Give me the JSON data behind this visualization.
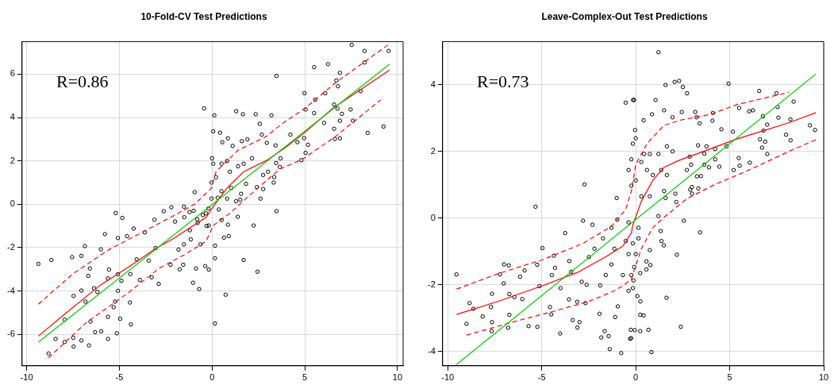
{
  "chart_data": [
    {
      "type": "scatter",
      "title": "10-Fold-CV Test Predictions",
      "annotations": [
        "R=0.86"
      ],
      "xlim": [
        -10.25,
        10.3
      ],
      "ylim": [
        -7.45,
        7.5
      ],
      "xticks": [
        -10,
        -5,
        0,
        5,
        10
      ],
      "yticks": [
        -6,
        -4,
        -2,
        0,
        2,
        4,
        6
      ],
      "grid": true,
      "series": [
        {
          "marker": "circle",
          "color": "#000000",
          "x": [
            -9.37,
            -8.67,
            -7.55,
            -7.05,
            -6.86,
            -6.0,
            -5.78,
            -5.2,
            -4.84,
            -5.08,
            -4.23,
            -3.63,
            -3.11,
            -2.61,
            -2.2,
            -1.52,
            -0.94,
            -0.43,
            0.12,
            0.06,
            0,
            -6.59,
            -6.68,
            -7.47,
            -7.05,
            -6.83,
            -6.37,
            -6.19,
            -5.56,
            -5.62,
            -5.08,
            -5.08,
            -5.23,
            -5.31,
            -5.62,
            -4.96,
            -5.14,
            -5.61,
            -5.98,
            -6.31,
            -6.56,
            -6.64,
            -7.05,
            -7.47,
            -7.49,
            -7.95,
            -8.44,
            -8.82,
            -7.95,
            -4.43,
            -4.38,
            -4.89,
            -4.41,
            -3.9,
            -3.26,
            -2.88,
            -4.59,
            -4.07,
            -3.42,
            -3.05,
            -2.24,
            -1.75,
            -1.56,
            -1.03,
            -0.7,
            -0.87,
            -0.37,
            -0.18,
            0.15,
            0.15,
            -1.81,
            -1.52,
            -1.15,
            -0.63,
            -0.18,
            -0.78,
            -1.22,
            -0.33,
            -0.03,
            -0.03,
            0.43,
            1.3,
            1.66,
            2.35,
            3.2,
            3.47,
            2.57,
            0.85,
            0.55,
            1.11,
            1.6,
            1.9,
            2.68,
            2.95,
            3.42,
            4.22,
            4.6,
            4.98,
            5.04,
            5.5,
            6.25,
            5.56,
            5.5,
            6.1,
            6.7,
            6.79,
            6.89,
            6.58,
            6.76,
            7.0,
            6.89,
            6.58,
            6.62,
            6.89,
            6.04,
            7.47,
            7.59,
            7.53,
            8.22,
            8.22,
            8.01,
            8.39,
            9.24,
            9.52,
            4.96,
            5.17,
            5.04,
            4.81,
            3.69,
            3.65,
            3.45,
            2.75,
            3.02,
            3.35,
            3.32,
            2.75,
            2.41,
            2.61,
            1.83,
            1.56,
            1.29,
            1.52,
            1.38,
            2.24,
            3.47,
            1.7,
            2.45,
            0.73,
            0.16,
            0.64,
            0.9,
            0.85,
            0.51,
            0.36,
            0.81,
            1.03,
            0.96,
            1.4,
            1.7,
            2.15,
            0.81,
            0.51,
            0.21,
            0.06,
            -0.5,
            -0.8,
            -0.3,
            -1.0,
            -0.2,
            0.3,
            0.5,
            -1.5,
            -2.0,
            -1.2
          ],
          "values": [
            -2.75,
            -2.57,
            -2.44,
            -2.38,
            -1.93,
            -2.08,
            -1.38,
            -0.41,
            -0.63,
            -1.56,
            -1.12,
            -1.3,
            -0.71,
            -0.32,
            -0.14,
            -0.11,
            0.56,
            4.42,
            4.1,
            3.36,
            2.12,
            -2.96,
            -3.3,
            -4.23,
            -3.98,
            -4.49,
            -3.87,
            -4.04,
            -3.01,
            -3.42,
            -3.23,
            -3.99,
            -4.49,
            -4.75,
            -5.19,
            -5.28,
            -5.95,
            -6.21,
            -5.86,
            -5.9,
            -5.41,
            -6.51,
            -6.28,
            -6.56,
            -6.16,
            -6.35,
            -6.21,
            -6.88,
            -5.32,
            -4.53,
            -5.54,
            -3.53,
            -3.22,
            -3.49,
            -3.37,
            -3.67,
            -1.47,
            -2.54,
            -2.6,
            -2.02,
            -2.79,
            -3.0,
            -2.79,
            -3.62,
            -3.91,
            -2.96,
            -2.85,
            -3.01,
            -2.49,
            -5.5,
            -2.09,
            -1.85,
            -1.62,
            -1.85,
            -0.98,
            -0.86,
            -0.36,
            -0.42,
            1.0,
            0.26,
            3.3,
            4.29,
            4.15,
            4.15,
            4.1,
            5.92,
            3.71,
            3.04,
            2.86,
            2.69,
            2.91,
            2.99,
            3.21,
            2.83,
            2.71,
            3.21,
            2.86,
            5.12,
            4.37,
            6.32,
            6.46,
            4.82,
            4.2,
            5.12,
            5.71,
            5.44,
            6.06,
            4.6,
            4.41,
            4.17,
            3.85,
            3.48,
            3.01,
            3.04,
            3.75,
            4.37,
            3.85,
            7.35,
            7.07,
            6.54,
            5.22,
            3.29,
            3.58,
            7.07,
            3.05,
            2.74,
            2.37,
            2.03,
            2.12,
            1.72,
            1.9,
            1.35,
            1.5,
            1.25,
            1.0,
            0.7,
            0.79,
            0.26,
            0.94,
            0.48,
            0.14,
            0.21,
            -0.58,
            -0.98,
            -0.32,
            -2.57,
            -3.11,
            -4.17,
            -1.91,
            -1.54,
            -1.47,
            -0.94,
            -0.73,
            -0.24,
            0.26,
            0.75,
            1.5,
            1.75,
            1.87,
            2.12,
            2.0,
            1.87,
            1.25,
            1.87,
            -0.5,
            -0.7,
            -1.0,
            -0.3,
            -0.2,
            0.3,
            0.6,
            -0.6,
            -0.8,
            -1.2
          ]
        },
        {
          "type": "line",
          "color": "#00cc00",
          "line_style": "solid",
          "x": [
            -9.37,
            9.57
          ],
          "values": [
            -6.36,
            6.46
          ]
        },
        {
          "type": "line",
          "color": "#ff0000",
          "line_style": "solid",
          "x": [
            -9.37,
            -7.95,
            -6.0,
            -4.51,
            -3.02,
            -2.12,
            -1.22,
            -0.33,
            0.06,
            0.81,
            1.7,
            2.9,
            3.95,
            4.99,
            6.49,
            9.57
          ],
          "values": [
            -6.08,
            -5.07,
            -3.71,
            -2.9,
            -2.03,
            -1.6,
            -1.1,
            -0.61,
            -0.11,
            0.75,
            1.5,
            2.0,
            2.61,
            3.3,
            4.41,
            6.19
          ]
        },
        {
          "type": "line",
          "color": "#ff0000",
          "line_style": "dashed",
          "x": [
            -9.37,
            -7.51,
            -5.56,
            -3.47,
            -2.12,
            -0.93,
            -0.03,
            0.21,
            1.4,
            2.9,
            3.8,
            4.99,
            6.64,
            9.57
          ],
          "values": [
            -4.61,
            -3.21,
            -2.09,
            -1.16,
            -0.55,
            0.01,
            0.75,
            1.5,
            2.49,
            3.11,
            3.73,
            4.41,
            5.59,
            7.4
          ]
        },
        {
          "type": "line",
          "color": "#ff0000",
          "line_style": "dashed",
          "x": [
            -8.82,
            -6.76,
            -4.51,
            -2.87,
            -1.52,
            -0.33,
            0.06,
            0.96,
            2.15,
            3.65,
            4.84,
            6.64,
            9.1
          ],
          "values": [
            -7.08,
            -5.44,
            -4.08,
            -2.96,
            -2.34,
            -1.72,
            -0.98,
            -0.42,
            0.51,
            1.62,
            2.06,
            3.11,
            4.82
          ]
        }
      ]
    },
    {
      "type": "scatter",
      "title": "Leave-Complex-Out Test Predictions",
      "annotations": [
        "R=0.73"
      ],
      "xlim": [
        -10.27,
        10.0
      ],
      "ylim": [
        -4.43,
        5.29
      ],
      "xticks": [
        -10,
        -5,
        0,
        5,
        10
      ],
      "yticks": [
        -4,
        -2,
        0,
        2,
        4
      ],
      "grid": true,
      "series": [
        {
          "marker": "circle",
          "color": "#000000",
          "x": [
            -9.53,
            -8.84,
            -9.0,
            -8.63,
            -8.14,
            -7.66,
            -7.64,
            -7.7,
            -7.64,
            -7.22,
            -7.0,
            -6.75,
            -7.02,
            -6.72,
            -6.78,
            -6.72,
            -6.45,
            -6.15,
            -6.03,
            -5.91,
            -5.7,
            -5.23,
            -5.33,
            -5.24,
            -5.12,
            -4.96,
            -4.35,
            -4.29,
            -4.56,
            -4.49,
            -4.02,
            -3.75,
            -3.53,
            -3.43,
            -3.55,
            -3.35,
            -3.1,
            -2.99,
            -3.11,
            -2.8,
            -2.72,
            -2.3,
            -2.49,
            -2.61,
            -2.67,
            -1.92,
            -1.65,
            -1.83,
            -1.44,
            -1.38,
            -0.77,
            -1.09,
            -0.95,
            -1.01,
            -0.53,
            -0.14,
            -0.3,
            -0.26,
            -1.89,
            -1.59,
            -1.29,
            -1.13,
            -1.29,
            -1.74,
            -2.19,
            -0.98,
            -0.53,
            -0.38,
            -0.68,
            -0.38,
            -0.38,
            -0.23,
            -0.38,
            -0.23,
            -2.87,
            -4.0,
            -4.46,
            1.21,
            1.59,
            2.07,
            2.31,
            2.51,
            2.73,
            -0.08,
            1.06,
            1.51,
            0.87,
            0.42,
            -0.03,
            1.96,
            2.45,
            3.17,
            3.24,
            3.4,
            4.11,
            4.08,
            4.56,
            4.94,
            5.5,
            6.04,
            6.24,
            6.57,
            7.49,
            8.4,
            7.55,
            6.77,
            6.99,
            7.59,
            8.23,
            9.27,
            9.54,
            8.0,
            8.24,
            6.8,
            6.61,
            6.89,
            6.72,
            7.0,
            6.07,
            5.53,
            5.48,
            5.21,
            5.17,
            4.83,
            4.23,
            4.23,
            3.77,
            3.65,
            3.32,
            2.87,
            2.95,
            2.72,
            3.26,
            3.47,
            3.9,
            4.45,
            3.65,
            2.99,
            3.33,
            2.9,
            3.0,
            2.11,
            2.16,
            1.59,
            1.51,
            1.66,
            1.36,
            0.91,
            0.6,
            0.3,
            1.21,
            1.66,
            1.96,
            0.75,
            0.75,
            1.21,
            2.56,
            3.43,
            1.33,
            1.37,
            1.5,
            2.19,
            0.75,
            0.57,
            0.78,
            0.57,
            0.24,
            1.64,
            0.09,
            0.25,
            0.24,
            0.42,
            -0.05,
            0.24,
            0.68,
            2.4,
            0.84,
            -0.24,
            -0.15,
            0.15,
            0.15,
            -0.15,
            0,
            -0.08,
            -0.23,
            -0.12,
            0.3,
            0,
            0.45,
            -0.15,
            0
          ],
          "values": [
            -1.69,
            -2.55,
            -3.17,
            -2.72,
            -2.95,
            -3.39,
            -3.12,
            -2.67,
            -2.27,
            -1.69,
            -1.39,
            -1.42,
            -1.96,
            -2.28,
            -3.29,
            -2.9,
            -2.37,
            -1.76,
            -2.43,
            -1.57,
            -3.24,
            -3.26,
            0.34,
            -1.4,
            -2.04,
            -0.9,
            -1.13,
            -1.49,
            -2.67,
            -2.89,
            -3.46,
            -0.45,
            -1.29,
            -1.61,
            -2.44,
            -3.06,
            -3.28,
            -3.12,
            -2.51,
            -0.08,
            1.01,
            -0.2,
            -1.17,
            -2.0,
            -2.55,
            -2.87,
            -3.39,
            -3.58,
            -3.54,
            -3.93,
            -4.05,
            -2.97,
            -2.65,
            0.6,
            3.46,
            3.54,
            -3.62,
            -3.35,
            -2.02,
            -1.71,
            -1.39,
            -0.92,
            -0.29,
            -0.61,
            -0.92,
            -0.05,
            -0.69,
            -1.08,
            -1.71,
            -2.18,
            -0.13,
            0.97,
            1.44,
            1.76,
            -1.91,
            -2.1,
            -1.71,
            4.97,
            3.99,
            4.08,
            4.11,
            3.93,
            3.74,
            3.54,
            3.54,
            3.23,
            3.11,
            2.93,
            2.64,
            3.02,
            3.18,
            3.18,
            3.02,
            2.84,
            3.15,
            2.92,
            2.66,
            4.03,
            3.3,
            3.2,
            3.23,
            3.81,
            3.74,
            3.49,
            3.33,
            3.05,
            2.8,
            3.01,
            2.96,
            2.78,
            2.64,
            2.5,
            2.33,
            2.62,
            2.36,
            2.29,
            2.11,
            1.92,
            1.66,
            1.57,
            1.8,
            1.44,
            2.59,
            2.15,
            2.07,
            1.76,
            2.15,
            1.93,
            2.18,
            1.84,
            1.6,
            1.44,
            1.25,
            1.26,
            1.52,
            1.54,
            1.6,
            0.93,
            0.89,
            0.85,
            0.73,
            0.73,
            0.48,
            0.6,
            0.81,
            1.29,
            1.44,
            1.29,
            1.44,
            1.68,
            1.92,
            2.15,
            2.0,
            1.92,
            0.65,
            0.06,
            -0.08,
            -0.43,
            -0.39,
            -0.69,
            -0.82,
            -1.1,
            -0.96,
            -1.3,
            -1.41,
            -1.54,
            -1.65,
            -2.39,
            -2.34,
            -2.5,
            -2.9,
            -2.92,
            -3.36,
            -3.39,
            -3.35,
            -3.26,
            -4.02,
            -3.6,
            -2.1,
            -0.29,
            -0.61,
            -0.76,
            -1.08,
            -1.47,
            -1.71,
            -1.87,
            0.65,
            1.13,
            1.92,
            2.23,
            2.39
          ]
        },
        {
          "type": "line",
          "color": "#00cc00",
          "line_style": "solid",
          "x": [
            -9.55,
            9.59
          ],
          "values": [
            -4.4,
            4.32
          ]
        },
        {
          "type": "line",
          "color": "#ff0000",
          "line_style": "solid",
          "x": [
            -9.53,
            -7.33,
            -4.91,
            -3.1,
            -1.59,
            -0.68,
            -0.23,
            -0.15,
            0.3,
            0.91,
            1.51,
            2.27,
            3.62,
            5.28,
            6.8,
            8.16,
            9.59
          ],
          "values": [
            -2.89,
            -2.5,
            -2.02,
            -1.63,
            -1.16,
            -0.84,
            -0.45,
            -0.21,
            0.5,
            1.13,
            1.52,
            1.72,
            2.0,
            2.35,
            2.62,
            2.86,
            3.16
          ]
        },
        {
          "type": "line",
          "color": "#ff0000",
          "line_style": "dashed",
          "x": [
            -9.53,
            -7.33,
            -4.91,
            -2.8,
            -1.29,
            -0.53,
            -0.23,
            -0.08,
            0,
            0.6,
            1.51,
            2.42,
            3.92,
            5.44,
            8.16
          ],
          "values": [
            -2.13,
            -1.67,
            -1.24,
            -0.76,
            -0.25,
            0.26,
            0.81,
            1.29,
            1.6,
            2.23,
            2.78,
            2.94,
            3.1,
            3.41,
            3.77
          ]
        },
        {
          "type": "line",
          "color": "#ff0000",
          "line_style": "dashed",
          "x": [
            -8.99,
            -6.42,
            -4.46,
            -2.49,
            -1.13,
            -0.6,
            -0.23,
            0.3,
            0.91,
            1.51,
            2.72,
            4.23,
            6.04,
            8.16,
            9.59
          ],
          "values": [
            -3.51,
            -3.1,
            -2.81,
            -2.5,
            -2.18,
            -2.0,
            -1.83,
            -0.92,
            -0.29,
            0.02,
            0.58,
            1.01,
            1.44,
            2.0,
            2.35
          ]
        }
      ]
    }
  ]
}
